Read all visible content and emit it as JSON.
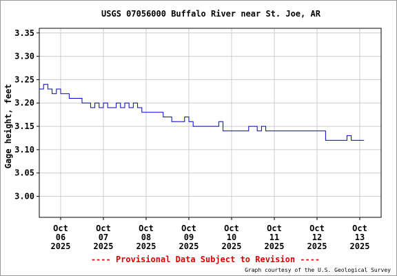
{
  "chart_data": {
    "type": "line",
    "title": "USGS 07056000 Buffalo River near St. Joe, AR",
    "ylabel": "Gage height, feet",
    "xlabel": "",
    "ylim": [
      2.955,
      3.36
    ],
    "xlim": [
      0,
      8
    ],
    "yticks": [
      3.0,
      3.05,
      3.1,
      3.15,
      3.2,
      3.25,
      3.3,
      3.35
    ],
    "ytick_labels": [
      "3.00",
      "3.05",
      "3.10",
      "3.15",
      "3.20",
      "3.25",
      "3.30",
      "3.35"
    ],
    "xticks": [
      0.5,
      1.5,
      2.5,
      3.5,
      4.5,
      5.5,
      6.5,
      7.5
    ],
    "xtick_labels": [
      [
        "Oct",
        "06",
        "2025"
      ],
      [
        "Oct",
        "07",
        "2025"
      ],
      [
        "Oct",
        "08",
        "2025"
      ],
      [
        "Oct",
        "09",
        "2025"
      ],
      [
        "Oct",
        "10",
        "2025"
      ],
      [
        "Oct",
        "11",
        "2025"
      ],
      [
        "Oct",
        "12",
        "2025"
      ],
      [
        "Oct",
        "13",
        "2025"
      ]
    ],
    "grid": true,
    "series": [
      {
        "color": "#0000cc",
        "x": [
          0,
          0.1,
          0.2,
          0.3,
          0.4,
          0.5,
          0.6,
          0.7,
          0.8,
          0.9,
          1.0,
          1.1,
          1.2,
          1.3,
          1.4,
          1.5,
          1.6,
          1.7,
          1.8,
          1.9,
          2.0,
          2.1,
          2.2,
          2.3,
          2.4,
          2.5,
          2.6,
          2.7,
          2.8,
          2.9,
          3.0,
          3.1,
          3.2,
          3.3,
          3.4,
          3.5,
          3.6,
          3.7,
          3.8,
          3.9,
          4.0,
          4.1,
          4.2,
          4.3,
          4.4,
          4.5,
          4.6,
          4.7,
          4.8,
          4.9,
          5.0,
          5.1,
          5.2,
          5.3,
          5.4,
          5.5,
          5.6,
          5.7,
          5.8,
          5.9,
          6.0,
          6.1,
          6.2,
          6.3,
          6.4,
          6.5,
          6.6,
          6.7,
          6.8,
          6.9,
          7.0,
          7.1,
          7.2,
          7.3,
          7.4,
          7.5,
          7.6
        ],
        "y": [
          3.23,
          3.24,
          3.23,
          3.22,
          3.23,
          3.22,
          3.22,
          3.21,
          3.21,
          3.21,
          3.2,
          3.2,
          3.19,
          3.2,
          3.19,
          3.2,
          3.19,
          3.19,
          3.2,
          3.19,
          3.2,
          3.19,
          3.2,
          3.19,
          3.18,
          3.18,
          3.18,
          3.18,
          3.18,
          3.17,
          3.17,
          3.16,
          3.16,
          3.16,
          3.17,
          3.16,
          3.15,
          3.15,
          3.15,
          3.15,
          3.15,
          3.15,
          3.16,
          3.14,
          3.14,
          3.14,
          3.14,
          3.14,
          3.14,
          3.15,
          3.15,
          3.14,
          3.15,
          3.14,
          3.14,
          3.14,
          3.14,
          3.14,
          3.14,
          3.14,
          3.14,
          3.14,
          3.14,
          3.14,
          3.14,
          3.14,
          3.14,
          3.12,
          3.12,
          3.12,
          3.12,
          3.12,
          3.13,
          3.12,
          3.12,
          3.12,
          3.12
        ]
      }
    ]
  },
  "footer": {
    "provisional_text": "---- Provisional Data Subject to Revision ----",
    "provisional_color": "#dd0000",
    "courtesy_text": "Graph courtesy of the U.S. Geological Survey"
  }
}
